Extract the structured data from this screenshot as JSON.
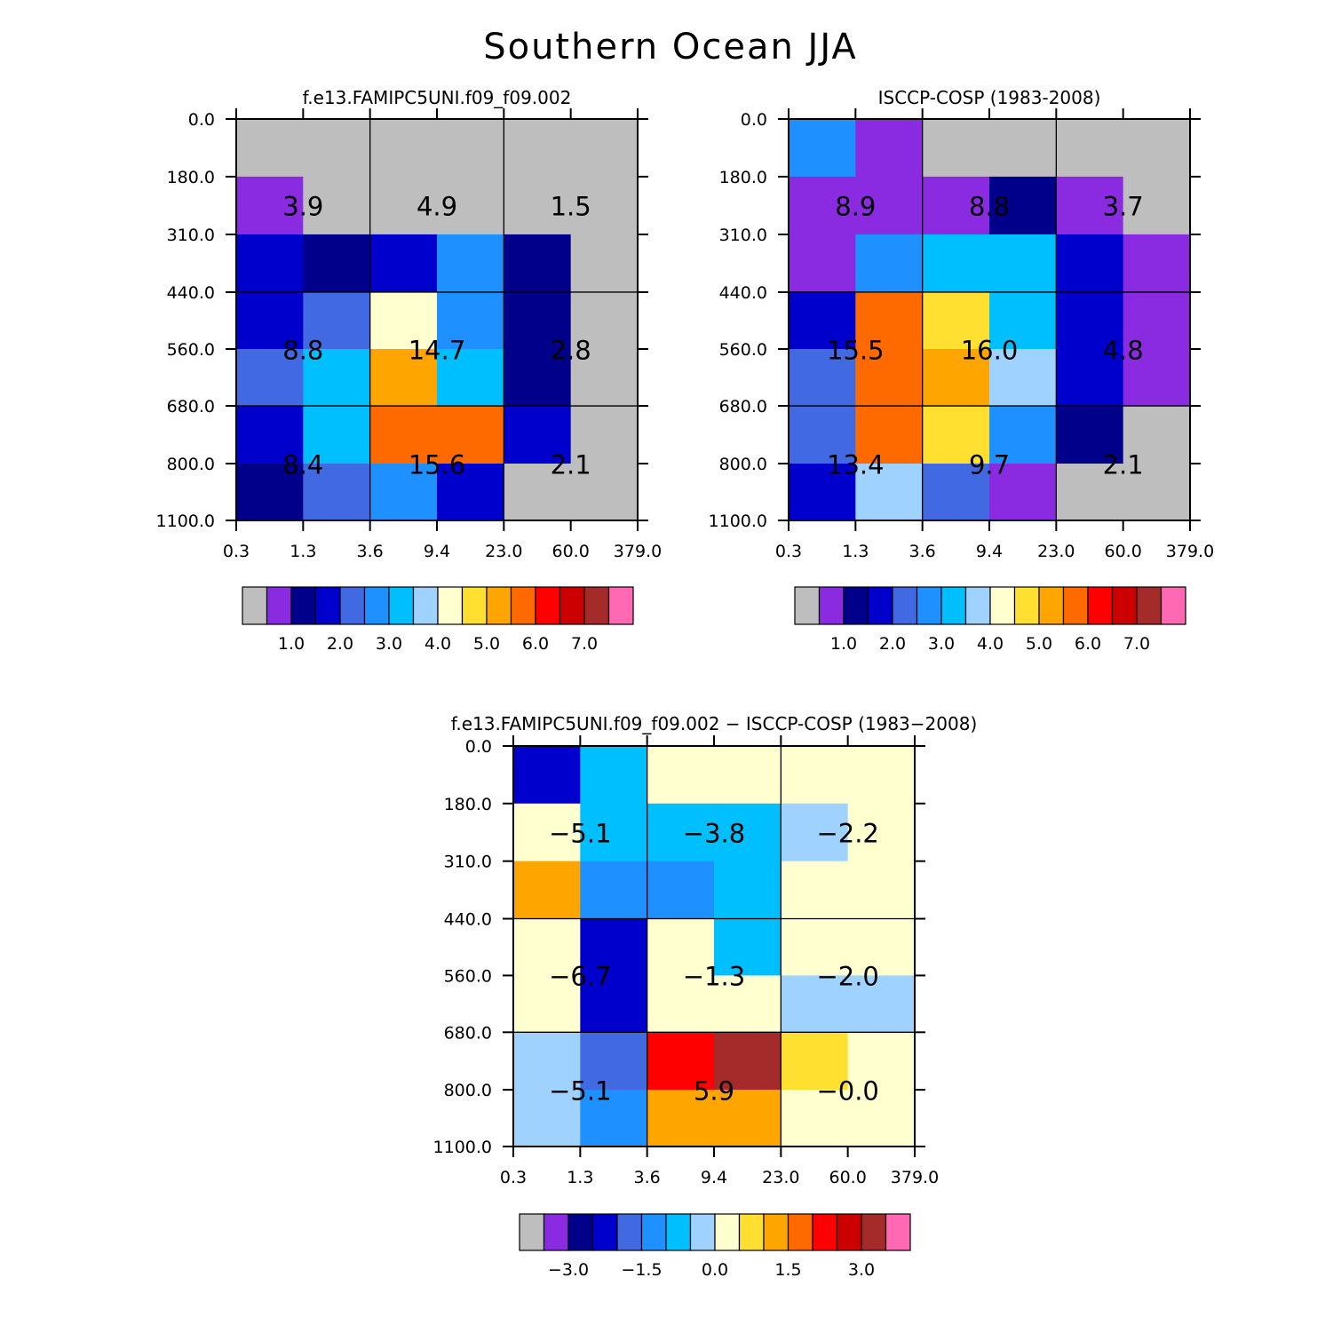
{
  "title": "Southern Ocean JJA",
  "charts": [
    {
      "type": "heatmap",
      "title": "f.e13.FAMIPC5UNI.f09_f09.002",
      "x_ticks": [
        "0.3",
        "1.3",
        "3.6",
        "9.4",
        "23.0",
        "60.0",
        "379.0"
      ],
      "y_ticks": [
        "0.0",
        "180.0",
        "310.0",
        "440.0",
        "560.0",
        "680.0",
        "800.0",
        "1100.0"
      ],
      "bin_levels": [
        0.2,
        0.5,
        1.0,
        1.5,
        2.0,
        2.5,
        3.0,
        3.5,
        4.0,
        4.5,
        5.0,
        6.0,
        7.0,
        8.0,
        9.0,
        10.0
      ],
      "cells": [
        [
          0.0,
          0.0,
          0.0,
          0.0,
          0.0,
          0.0
        ],
        [
          0.3,
          0.0,
          0.0,
          0.0,
          0.0,
          0.0
        ],
        [
          1.2,
          0.8,
          1.2,
          2.2,
          0.8,
          0.0
        ],
        [
          1.2,
          1.8,
          3.8,
          2.2,
          0.8,
          0.0
        ],
        [
          1.8,
          2.8,
          4.8,
          2.8,
          0.8,
          0.0
        ],
        [
          1.2,
          2.8,
          5.5,
          5.2,
          1.2,
          0.0
        ],
        [
          0.8,
          1.8,
          2.2,
          1.2,
          0.0,
          0.0
        ]
      ],
      "box_labels": [
        [
          "3.9",
          "4.9",
          "1.5"
        ],
        [
          "8.8",
          "14.7",
          "2.8"
        ],
        [
          "8.4",
          "15.6",
          "2.1"
        ]
      ],
      "colorbar_labels": [
        "1.0",
        "2.0",
        "3.0",
        "4.0",
        "5.0",
        "6.0",
        "7.0"
      ]
    },
    {
      "type": "heatmap",
      "title": "ISCCP-COSP (1983-2008)",
      "x_ticks": [
        "0.3",
        "1.3",
        "3.6",
        "9.4",
        "23.0",
        "60.0",
        "379.0"
      ],
      "y_ticks": [
        "0.0",
        "180.0",
        "310.0",
        "440.0",
        "560.0",
        "680.0",
        "800.0",
        "1100.0"
      ],
      "bin_levels": [
        0.2,
        0.5,
        1.0,
        1.5,
        2.0,
        2.5,
        3.0,
        3.5,
        4.0,
        4.5,
        5.0,
        6.0,
        7.0,
        8.0,
        9.0,
        10.0
      ],
      "cells": [
        [
          2.2,
          0.3,
          0.0,
          0.0,
          0.0,
          0.0
        ],
        [
          0.3,
          0.3,
          0.3,
          0.8,
          0.3,
          0.0
        ],
        [
          0.3,
          2.2,
          2.8,
          2.8,
          1.2,
          0.3
        ],
        [
          1.2,
          5.2,
          4.2,
          2.8,
          1.2,
          0.3
        ],
        [
          1.8,
          5.5,
          4.8,
          3.2,
          1.2,
          0.3
        ],
        [
          1.8,
          5.2,
          4.2,
          2.2,
          0.8,
          0.0
        ],
        [
          1.2,
          3.2,
          1.8,
          0.3,
          0.0,
          0.0
        ]
      ],
      "box_labels": [
        [
          "8.9",
          "8.8",
          "3.7"
        ],
        [
          "15.5",
          "16.0",
          "4.8"
        ],
        [
          "13.4",
          "9.7",
          "2.1"
        ]
      ],
      "colorbar_labels": [
        "1.0",
        "2.0",
        "3.0",
        "4.0",
        "5.0",
        "6.0",
        "7.0"
      ]
    },
    {
      "type": "heatmap",
      "title": "f.e13.FAMIPC5UNI.f09_f09.002 − ISCCP-COSP (1983−2008)",
      "x_ticks": [
        "0.3",
        "1.3",
        "3.6",
        "9.4",
        "23.0",
        "60.0",
        "379.0"
      ],
      "y_ticks": [
        "0.0",
        "180.0",
        "310.0",
        "440.0",
        "560.0",
        "680.0",
        "800.0",
        "1100.0"
      ],
      "bin_levels": [
        -4.0,
        -3.5,
        -3.0,
        -2.5,
        -2.0,
        -1.5,
        -1.0,
        -0.5,
        0.0,
        0.5,
        1.0,
        1.5,
        2.0,
        2.5,
        3.0,
        3.5
      ],
      "cells": [
        [
          -2.8,
          -1.2,
          -0.2,
          -0.2,
          -0.2,
          -0.2
        ],
        [
          -0.2,
          -1.2,
          -1.2,
          -1.2,
          -0.8,
          -0.2
        ],
        [
          0.8,
          -1.8,
          -1.8,
          -1.2,
          -0.2,
          -0.2
        ],
        [
          -0.2,
          -2.8,
          -0.2,
          -1.2,
          -0.2,
          -0.2
        ],
        [
          -0.2,
          -2.8,
          -0.2,
          -0.2,
          -0.8,
          -0.8
        ],
        [
          -0.8,
          -2.2,
          1.8,
          2.8,
          0.2,
          -0.2
        ],
        [
          -0.8,
          -1.8,
          0.8,
          0.8,
          -0.2,
          -0.2
        ]
      ],
      "box_labels": [
        [
          "−5.1",
          "−3.8",
          "−2.2"
        ],
        [
          "−6.7",
          "−1.3",
          "−2.0"
        ],
        [
          "−5.1",
          "5.9",
          "−0.0"
        ]
      ],
      "colorbar_labels": [
        "−3.0",
        "−1.5",
        "0.0",
        "1.5",
        "3.0"
      ]
    }
  ],
  "colors": [
    "#BEBEBE",
    "#8A2BE2",
    "#00008B",
    "#0000CD",
    "#4169E1",
    "#1E90FF",
    "#00BFFF",
    "#A0D2FF",
    "#FFFFD0",
    "#FFE030",
    "#FFA500",
    "#FF6A00",
    "#FF0000",
    "#CD0000",
    "#A52A2A",
    "#FF69B4"
  ]
}
